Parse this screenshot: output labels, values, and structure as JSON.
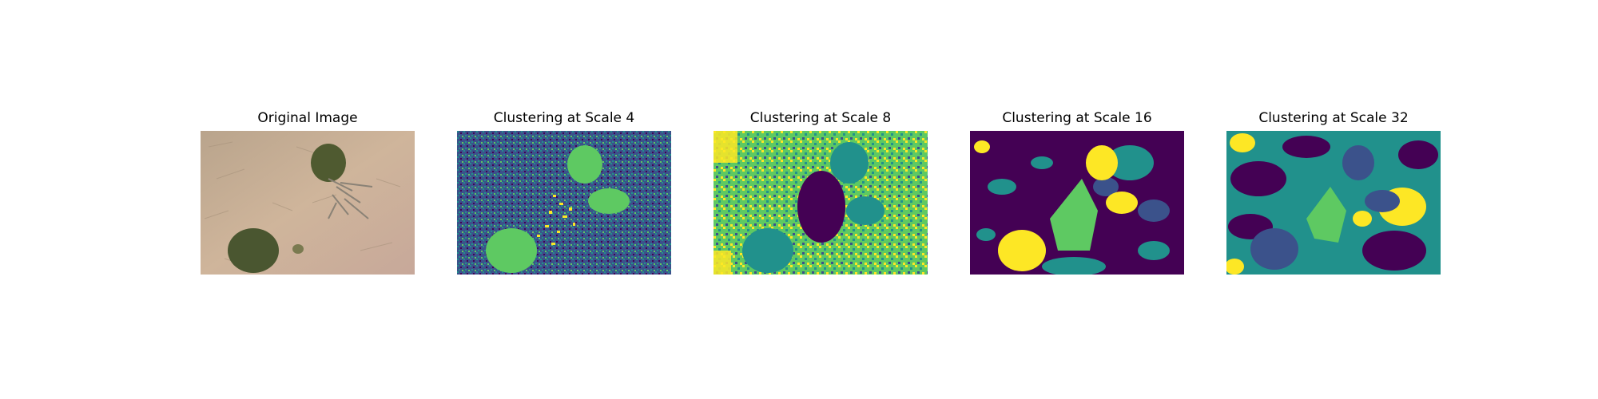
{
  "figure": {
    "panels": [
      {
        "title": "Original Image"
      },
      {
        "title": "Clustering at Scale 4"
      },
      {
        "title": "Clustering at Scale 8"
      },
      {
        "title": "Clustering at Scale 16"
      },
      {
        "title": "Clustering at Scale 32"
      }
    ]
  },
  "colors": {
    "viridis_purple": "#440154",
    "viridis_blue": "#3b528b",
    "viridis_teal": "#21918c",
    "viridis_green": "#5ec962",
    "viridis_yellow": "#fde725",
    "ground": "#c9b298",
    "shrub": "#4f5a30"
  }
}
